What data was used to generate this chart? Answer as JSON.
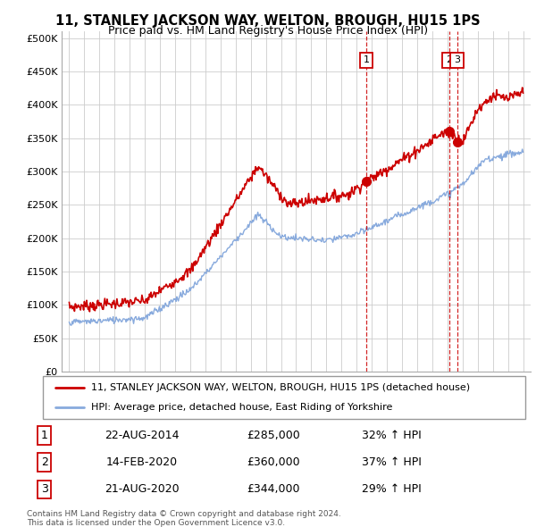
{
  "title": "11, STANLEY JACKSON WAY, WELTON, BROUGH, HU15 1PS",
  "subtitle": "Price paid vs. HM Land Registry's House Price Index (HPI)",
  "ylabel_ticks": [
    0,
    50000,
    100000,
    150000,
    200000,
    250000,
    300000,
    350000,
    400000,
    450000,
    500000
  ],
  "ylabel_labels": [
    "£0",
    "£50K",
    "£100K",
    "£150K",
    "£200K",
    "£250K",
    "£300K",
    "£350K",
    "£400K",
    "£450K",
    "£500K"
  ],
  "ylim": [
    0,
    510000
  ],
  "xlim_start": 1994.5,
  "xlim_end": 2025.5,
  "property_color": "#cc0000",
  "hpi_color": "#88aadd",
  "sale_dates": [
    2014.64,
    2020.12,
    2020.64
  ],
  "sale_prices": [
    285000,
    360000,
    344000
  ],
  "sale_labels": [
    "1",
    "2",
    "3"
  ],
  "sale_info": [
    {
      "num": "1",
      "date": "22-AUG-2014",
      "price": "£285,000",
      "pct": "32% ↑ HPI"
    },
    {
      "num": "2",
      "date": "14-FEB-2020",
      "price": "£360,000",
      "pct": "37% ↑ HPI"
    },
    {
      "num": "3",
      "date": "21-AUG-2020",
      "price": "£344,000",
      "pct": "29% ↑ HPI"
    }
  ],
  "legend_property": "11, STANLEY JACKSON WAY, WELTON, BROUGH, HU15 1PS (detached house)",
  "legend_hpi": "HPI: Average price, detached house, East Riding of Yorkshire",
  "footer1": "Contains HM Land Registry data © Crown copyright and database right 2024.",
  "footer2": "This data is licensed under the Open Government Licence v3.0.",
  "background_color": "#ffffff",
  "grid_color": "#cccccc"
}
